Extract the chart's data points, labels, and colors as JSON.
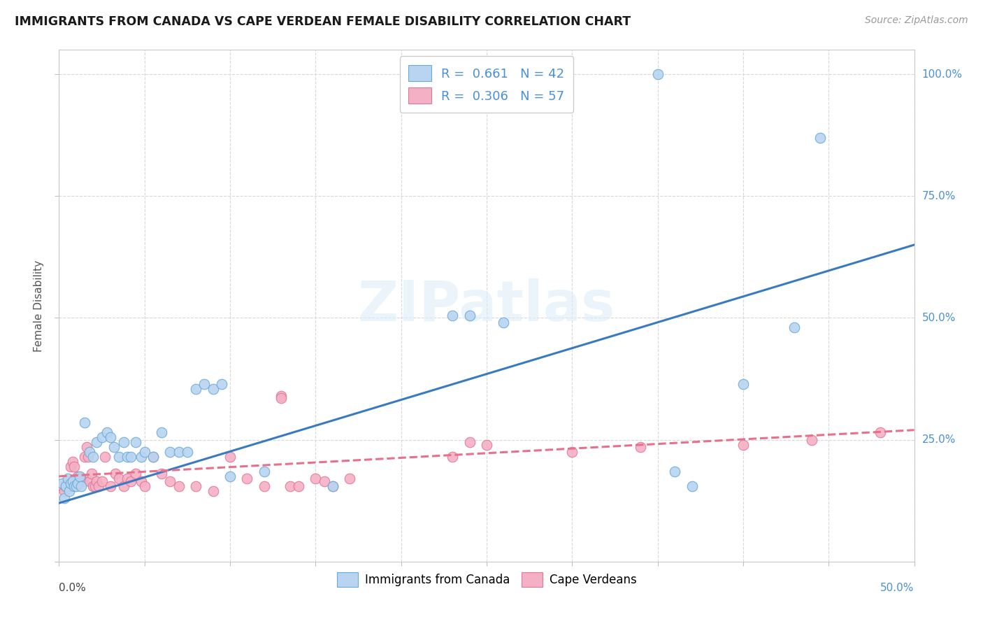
{
  "title": "IMMIGRANTS FROM CANADA VS CAPE VERDEAN FEMALE DISABILITY CORRELATION CHART",
  "source": "Source: ZipAtlas.com",
  "ylabel": "Female Disability",
  "canada_line_color": "#3a7abf",
  "capeverde_line_color": "#e8708a",
  "watermark_text": "ZIPatlas",
  "background_color": "#ffffff",
  "grid_color": "#d8d8d8",
  "ytick_color": "#4a90d9",
  "xtick_right_color": "#4a90d9",
  "legend_label_color": "#4a90d9",
  "canada_scatter_color": "#b8d4f0",
  "canada_scatter_edge": "#6aaad8",
  "capeverde_scatter_color": "#f4b0c4",
  "capeverde_scatter_edge": "#e07898",
  "canada_scatter": [
    [
      0.002,
      0.16
    ],
    [
      0.003,
      0.13
    ],
    [
      0.004,
      0.155
    ],
    [
      0.005,
      0.17
    ],
    [
      0.006,
      0.145
    ],
    [
      0.007,
      0.16
    ],
    [
      0.008,
      0.165
    ],
    [
      0.009,
      0.155
    ],
    [
      0.01,
      0.155
    ],
    [
      0.011,
      0.16
    ],
    [
      0.012,
      0.175
    ],
    [
      0.013,
      0.155
    ],
    [
      0.015,
      0.285
    ],
    [
      0.018,
      0.225
    ],
    [
      0.02,
      0.215
    ],
    [
      0.022,
      0.245
    ],
    [
      0.025,
      0.255
    ],
    [
      0.028,
      0.265
    ],
    [
      0.03,
      0.255
    ],
    [
      0.032,
      0.235
    ],
    [
      0.035,
      0.215
    ],
    [
      0.038,
      0.245
    ],
    [
      0.04,
      0.215
    ],
    [
      0.042,
      0.215
    ],
    [
      0.045,
      0.245
    ],
    [
      0.048,
      0.215
    ],
    [
      0.05,
      0.225
    ],
    [
      0.055,
      0.215
    ],
    [
      0.06,
      0.265
    ],
    [
      0.065,
      0.225
    ],
    [
      0.07,
      0.225
    ],
    [
      0.075,
      0.225
    ],
    [
      0.08,
      0.355
    ],
    [
      0.085,
      0.365
    ],
    [
      0.09,
      0.355
    ],
    [
      0.095,
      0.365
    ],
    [
      0.1,
      0.175
    ],
    [
      0.12,
      0.185
    ],
    [
      0.16,
      0.155
    ],
    [
      0.23,
      0.505
    ],
    [
      0.24,
      0.505
    ],
    [
      0.26,
      0.49
    ],
    [
      0.36,
      0.185
    ],
    [
      0.37,
      0.155
    ],
    [
      0.4,
      0.365
    ],
    [
      0.43,
      0.48
    ],
    [
      0.445,
      0.87
    ],
    [
      0.35,
      1.0
    ]
  ],
  "capeverde_scatter": [
    [
      0.002,
      0.155
    ],
    [
      0.003,
      0.145
    ],
    [
      0.004,
      0.155
    ],
    [
      0.005,
      0.165
    ],
    [
      0.006,
      0.155
    ],
    [
      0.007,
      0.195
    ],
    [
      0.008,
      0.205
    ],
    [
      0.009,
      0.195
    ],
    [
      0.01,
      0.17
    ],
    [
      0.011,
      0.175
    ],
    [
      0.012,
      0.17
    ],
    [
      0.013,
      0.17
    ],
    [
      0.014,
      0.165
    ],
    [
      0.015,
      0.215
    ],
    [
      0.016,
      0.235
    ],
    [
      0.017,
      0.215
    ],
    [
      0.018,
      0.165
    ],
    [
      0.019,
      0.18
    ],
    [
      0.02,
      0.155
    ],
    [
      0.021,
      0.155
    ],
    [
      0.022,
      0.165
    ],
    [
      0.023,
      0.155
    ],
    [
      0.025,
      0.165
    ],
    [
      0.027,
      0.215
    ],
    [
      0.03,
      0.155
    ],
    [
      0.033,
      0.18
    ],
    [
      0.035,
      0.17
    ],
    [
      0.038,
      0.155
    ],
    [
      0.04,
      0.17
    ],
    [
      0.042,
      0.165
    ],
    [
      0.045,
      0.18
    ],
    [
      0.048,
      0.165
    ],
    [
      0.05,
      0.155
    ],
    [
      0.055,
      0.215
    ],
    [
      0.06,
      0.18
    ],
    [
      0.065,
      0.165
    ],
    [
      0.07,
      0.155
    ],
    [
      0.08,
      0.155
    ],
    [
      0.09,
      0.145
    ],
    [
      0.1,
      0.215
    ],
    [
      0.11,
      0.17
    ],
    [
      0.12,
      0.155
    ],
    [
      0.13,
      0.34
    ],
    [
      0.135,
      0.155
    ],
    [
      0.14,
      0.155
    ],
    [
      0.15,
      0.17
    ],
    [
      0.155,
      0.165
    ],
    [
      0.16,
      0.155
    ],
    [
      0.17,
      0.17
    ],
    [
      0.23,
      0.215
    ],
    [
      0.24,
      0.245
    ],
    [
      0.25,
      0.24
    ],
    [
      0.13,
      0.335
    ],
    [
      0.3,
      0.225
    ],
    [
      0.34,
      0.235
    ],
    [
      0.4,
      0.24
    ],
    [
      0.44,
      0.25
    ],
    [
      0.48,
      0.265
    ]
  ],
  "xmin": 0.0,
  "xmax": 0.5,
  "ymin": 0.0,
  "ymax": 1.05
}
